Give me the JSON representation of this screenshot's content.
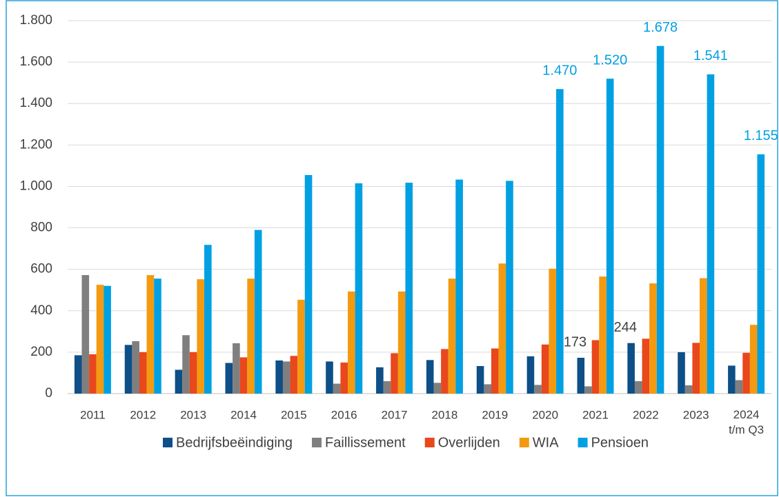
{
  "chart_data": {
    "type": "bar",
    "categories": [
      "2011",
      "2012",
      "2013",
      "2014",
      "2015",
      "2016",
      "2017",
      "2018",
      "2019",
      "2020",
      "2021",
      "2022",
      "2023",
      "2024 t/m Q3"
    ],
    "series": [
      {
        "name": "Bedrijfsbeëindiging",
        "color": "#0e4f87",
        "values": [
          185,
          235,
          115,
          148,
          160,
          155,
          127,
          162,
          133,
          180,
          173,
          244,
          200,
          135
        ],
        "value_labels": [
          null,
          null,
          null,
          null,
          null,
          null,
          null,
          null,
          null,
          null,
          "173",
          "244",
          null,
          null
        ],
        "label_color": "#404040"
      },
      {
        "name": "Faillissement",
        "color": "#7f7f7f",
        "values": [
          572,
          253,
          282,
          243,
          155,
          48,
          60,
          52,
          45,
          42,
          35,
          60,
          40,
          65
        ]
      },
      {
        "name": "Overlijden",
        "color": "#e8481c",
        "values": [
          190,
          200,
          200,
          175,
          182,
          150,
          195,
          215,
          218,
          237,
          258,
          265,
          245,
          197
        ]
      },
      {
        "name": "WIA",
        "color": "#f39a10",
        "values": [
          525,
          572,
          552,
          555,
          453,
          493,
          493,
          555,
          628,
          603,
          565,
          532,
          557,
          332
        ]
      },
      {
        "name": "Pensioen",
        "color": "#00a0e3",
        "values": [
          520,
          555,
          718,
          790,
          1055,
          1015,
          1018,
          1033,
          1027,
          1470,
          1520,
          1678,
          1541,
          1155
        ],
        "value_labels": [
          null,
          null,
          null,
          null,
          null,
          null,
          null,
          null,
          null,
          "1.470",
          "1.520",
          "1.678",
          "1.541",
          "1.155"
        ],
        "label_color": "#00a0e3"
      }
    ],
    "ylim": [
      0,
      1800
    ],
    "yticks": [
      0,
      200,
      400,
      600,
      800,
      {
        "value": 1000,
        "label": "1.000"
      },
      {
        "value": 1200,
        "label": "1.200"
      },
      {
        "value": 1400,
        "label": "1.400"
      },
      {
        "value": 1600,
        "label": "1.600"
      },
      {
        "value": 1800,
        "label": "1.800"
      }
    ],
    "grid": true,
    "legend": "bottom"
  }
}
